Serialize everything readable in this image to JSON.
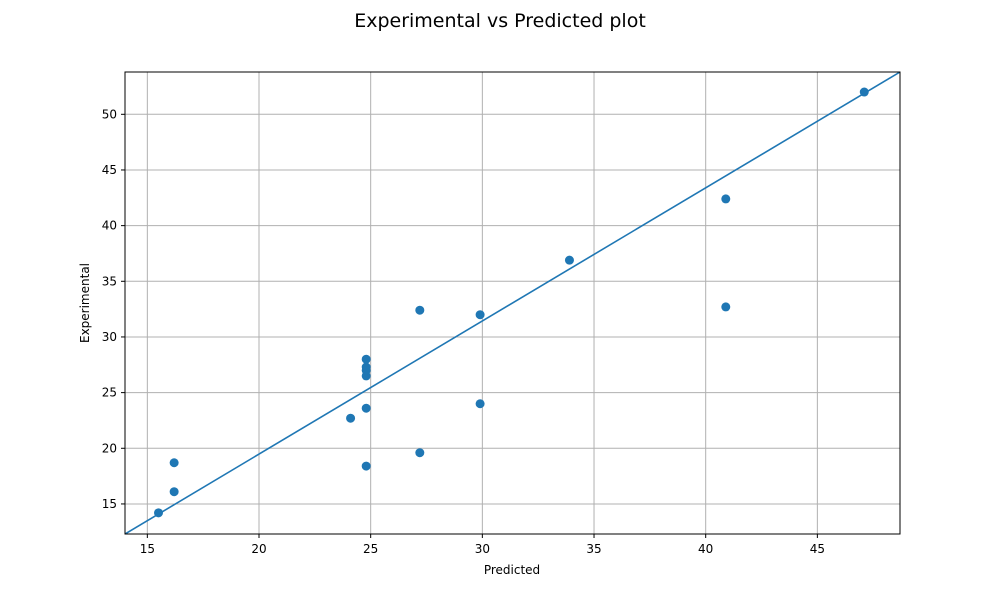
{
  "chart_data": {
    "type": "scatter",
    "title": "Experimental vs Predicted plot",
    "xlabel": "Predicted",
    "ylabel": "Experimental",
    "xlim": [
      14.0,
      48.7
    ],
    "ylim": [
      12.3,
      53.8
    ],
    "xticks": [
      15,
      20,
      25,
      30,
      35,
      40,
      45
    ],
    "yticks": [
      15,
      20,
      25,
      30,
      35,
      40,
      45,
      50
    ],
    "grid": true,
    "points": [
      {
        "x": 15.5,
        "y": 14.2
      },
      {
        "x": 16.2,
        "y": 16.1
      },
      {
        "x": 16.2,
        "y": 18.7
      },
      {
        "x": 24.1,
        "y": 22.7
      },
      {
        "x": 24.8,
        "y": 23.6
      },
      {
        "x": 24.8,
        "y": 18.4
      },
      {
        "x": 24.8,
        "y": 26.5
      },
      {
        "x": 24.8,
        "y": 27.0
      },
      {
        "x": 24.8,
        "y": 27.3
      },
      {
        "x": 24.8,
        "y": 28.0
      },
      {
        "x": 27.2,
        "y": 32.4
      },
      {
        "x": 27.2,
        "y": 19.6
      },
      {
        "x": 29.9,
        "y": 32.0
      },
      {
        "x": 29.9,
        "y": 24.0
      },
      {
        "x": 33.9,
        "y": 36.9
      },
      {
        "x": 40.9,
        "y": 42.4
      },
      {
        "x": 40.9,
        "y": 32.7
      },
      {
        "x": 47.1,
        "y": 52.0
      }
    ],
    "fit_line": {
      "x1": 14.0,
      "y1": 12.3,
      "x2": 48.7,
      "y2": 53.8
    },
    "colors": {
      "marker": "#1f77b4",
      "line": "#1f77b4",
      "grid": "#b0b0b0",
      "axes": "#000000"
    }
  }
}
